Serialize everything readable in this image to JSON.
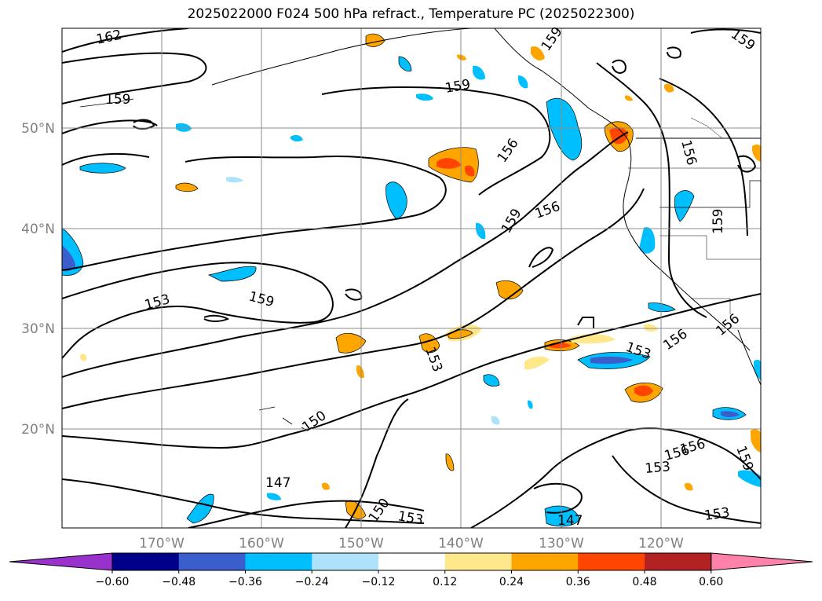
{
  "title": "2025022000 F024 500 hPa refract., Temperature PC (2025022300)",
  "map": {
    "lat_labels": [
      "50°N",
      "40°N",
      "30°N",
      "20°N"
    ],
    "lon_labels": [
      "170°W",
      "160°W",
      "150°W",
      "140°W",
      "130°W",
      "120°W"
    ],
    "contour_labels": [
      "162",
      "159",
      "159",
      "159",
      "159",
      "156",
      "156",
      "156",
      "156",
      "159",
      "159",
      "153",
      "159",
      "153",
      "153",
      "156",
      "156",
      "150",
      "147",
      "150",
      "153",
      "147",
      "153",
      "153",
      "156",
      "159"
    ]
  },
  "colorbar": {
    "ticks": [
      "−0.60",
      "−0.48",
      "−0.36",
      "−0.24",
      "−0.12",
      "0.12",
      "0.24",
      "0.36",
      "0.48",
      "0.60"
    ],
    "colors": [
      "#9932CC",
      "#00008B",
      "#3A5FCD",
      "#00BFFF",
      "#ADE2FA",
      "#FFFFFF",
      "#FFE88C",
      "#FFA500",
      "#FF4500",
      "#B22222",
      "#FF82AB"
    ]
  }
}
